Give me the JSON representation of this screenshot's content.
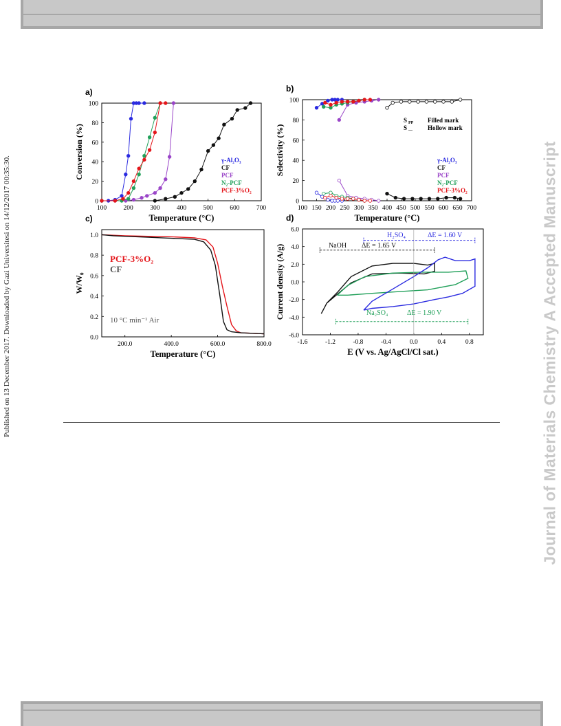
{
  "side_left": "Published on 13 December 2017. Downloaded by Gazi Universitesi on 14/12/2017 00:35:30.",
  "side_right": "Journal of Materials Chemistry A Accepted Manuscript",
  "colors": {
    "blue": "#2a2ae0",
    "black": "#111111",
    "purple": "#9a45c8",
    "green": "#21a05a",
    "red": "#e4161b",
    "gray": "#555555"
  },
  "chart_data": [
    {
      "panel": "a)",
      "type": "line",
      "xlabel": "Temperature (°C)",
      "ylabel": "Conversion (%)",
      "xlim": [
        100,
        700
      ],
      "ylim": [
        0,
        100
      ],
      "xticks": [
        100,
        200,
        300,
        400,
        500,
        600,
        700
      ],
      "yticks": [
        0,
        20,
        40,
        60,
        80,
        100
      ],
      "legend": [
        "γ-Al₂O₃",
        "CF",
        "PCF",
        "N₂-PCF",
        "PCF-3%O₂"
      ],
      "series": [
        {
          "name": "γ-Al₂O₃",
          "color": "blue",
          "x": [
            100,
            125,
            150,
            175,
            190,
            200,
            210,
            220,
            230,
            240,
            260
          ],
          "y": [
            0,
            0,
            1,
            5,
            27,
            46,
            84,
            100,
            100,
            100,
            100
          ]
        },
        {
          "name": "CF",
          "color": "black",
          "x": [
            300,
            340,
            375,
            400,
            425,
            450,
            475,
            500,
            520,
            540,
            560,
            590,
            610,
            640,
            660
          ],
          "y": [
            0,
            2,
            4,
            8,
            12,
            20,
            32,
            51,
            57,
            64,
            78,
            84,
            93,
            95,
            100
          ]
        },
        {
          "name": "PCF",
          "color": "purple",
          "x": [
            100,
            150,
            190,
            220,
            250,
            270,
            300,
            320,
            340,
            355,
            370
          ],
          "y": [
            0,
            0,
            0,
            1,
            3,
            5,
            8,
            13,
            22,
            45,
            100
          ]
        },
        {
          "name": "N₂-PCF",
          "color": "green",
          "x": [
            100,
            175,
            200,
            220,
            240,
            260,
            280,
            300,
            320
          ],
          "y": [
            0,
            0,
            2,
            13,
            27,
            46,
            65,
            85,
            100
          ]
        },
        {
          "name": "PCF-3%O₂",
          "color": "red",
          "x": [
            100,
            150,
            180,
            200,
            220,
            240,
            260,
            280,
            300,
            320,
            340
          ],
          "y": [
            0,
            0,
            2,
            8,
            20,
            33,
            42,
            52,
            70,
            100,
            100
          ]
        }
      ]
    },
    {
      "panel": "b)",
      "type": "line",
      "xlabel": "Temperature (°C)",
      "ylabel": "Selectivity (%)",
      "xlim": [
        100,
        700
      ],
      "ylim": [
        0,
        100
      ],
      "xticks": [
        100,
        150,
        200,
        250,
        300,
        350,
        400,
        450,
        500,
        550,
        600,
        650,
        700
      ],
      "yticks": [
        0,
        20,
        40,
        60,
        80,
        100
      ],
      "legend": [
        "γ-Al₂O₃",
        "CF",
        "PCF",
        "N₂-PCF",
        "PCF-3%O₂"
      ],
      "annotation": [
        "S",
        "PP",
        "Filled mark",
        "S",
        "—",
        "Hollow mark"
      ],
      "series": [
        {
          "name": "γ-Al₂O₃ S_PP",
          "color": "blue",
          "filled": true,
          "x": [
            150,
            170,
            190,
            205,
            215,
            225,
            240
          ],
          "y": [
            92,
            96,
            99,
            100,
            100,
            100,
            100
          ]
        },
        {
          "name": "γ-Al₂O₃ hollow",
          "color": "blue",
          "filled": false,
          "x": [
            150,
            170,
            190,
            205,
            215,
            225,
            240
          ],
          "y": [
            8,
            4,
            1,
            0,
            0,
            0,
            0
          ]
        },
        {
          "name": "CF S_PP",
          "color": "black",
          "filled": true,
          "x": [
            400,
            430,
            460,
            490,
            520,
            550,
            580,
            610,
            640,
            660
          ],
          "y": [
            7,
            3,
            2,
            2,
            2,
            2,
            2,
            3,
            3,
            2
          ]
        },
        {
          "name": "CF hollow",
          "color": "black",
          "filled": false,
          "x": [
            400,
            420,
            450,
            480,
            510,
            540,
            570,
            600,
            630,
            660
          ],
          "y": [
            92,
            97,
            98,
            98,
            98,
            98,
            98,
            98,
            98,
            100
          ]
        },
        {
          "name": "PCF S_PP",
          "color": "purple",
          "filled": true,
          "x": [
            230,
            260,
            290,
            320,
            345,
            370
          ],
          "y": [
            80,
            95,
            97,
            98,
            99,
            100
          ]
        },
        {
          "name": "PCF hollow",
          "color": "purple",
          "filled": false,
          "x": [
            230,
            260,
            290,
            320,
            345,
            370
          ],
          "y": [
            20,
            5,
            3,
            2,
            1,
            0
          ]
        },
        {
          "name": "N₂-PCF S_PP",
          "color": "green",
          "filled": true,
          "x": [
            175,
            200,
            220,
            240,
            260,
            280,
            300,
            320
          ],
          "y": [
            93,
            92,
            95,
            96,
            97,
            98,
            99,
            100
          ]
        },
        {
          "name": "N₂-PCF hollow",
          "color": "green",
          "filled": false,
          "x": [
            175,
            200,
            220,
            240,
            260,
            280,
            300,
            320
          ],
          "y": [
            7,
            8,
            5,
            4,
            3,
            2,
            1,
            0
          ]
        },
        {
          "name": "PCF-3%O₂ S_PP",
          "color": "red",
          "filled": true,
          "x": [
            180,
            200,
            220,
            240,
            260,
            280,
            300,
            320,
            340
          ],
          "y": [
            97,
            95,
            97,
            98,
            98,
            98,
            99,
            100,
            100
          ]
        },
        {
          "name": "PCF-3%O₂ hollow",
          "color": "red",
          "filled": false,
          "x": [
            180,
            200,
            220,
            240,
            260,
            280,
            300,
            320,
            340
          ],
          "y": [
            3,
            5,
            3,
            2,
            2,
            2,
            1,
            0,
            0
          ]
        }
      ]
    },
    {
      "panel": "c)",
      "type": "line",
      "xlabel": "Temperature (°C)",
      "ylabel": "W/W₀",
      "xlim": [
        100,
        800
      ],
      "ylim": [
        0.0,
        1.05
      ],
      "xticks": [
        200,
        400,
        600,
        800
      ],
      "yticks": [
        0.0,
        0.2,
        0.4,
        0.6,
        0.8,
        1.0
      ],
      "legend": [
        "PCF-3%O₂",
        "CF"
      ],
      "annotation": "10 °C min⁻¹ Air",
      "series": [
        {
          "name": "PCF-3%O₂",
          "color": "red",
          "x": [
            100,
            150,
            200,
            300,
            400,
            500,
            550,
            580,
            600,
            620,
            640,
            660,
            680,
            700,
            750,
            800
          ],
          "y": [
            1.0,
            0.995,
            0.99,
            0.985,
            0.98,
            0.97,
            0.95,
            0.88,
            0.72,
            0.5,
            0.3,
            0.12,
            0.06,
            0.04,
            0.035,
            0.03
          ]
        },
        {
          "name": "CF",
          "color": "black",
          "x": [
            100,
            150,
            200,
            300,
            400,
            500,
            540,
            570,
            590,
            610,
            625,
            640,
            660,
            700,
            750,
            800
          ],
          "y": [
            1.0,
            0.99,
            0.985,
            0.975,
            0.965,
            0.955,
            0.93,
            0.85,
            0.7,
            0.4,
            0.15,
            0.07,
            0.05,
            0.04,
            0.035,
            0.03
          ]
        }
      ]
    },
    {
      "panel": "d)",
      "type": "line",
      "xlabel": "E (V vs. Ag/AgCl/Cl sat.)",
      "ylabel": "Current density (A/g)",
      "xlim": [
        -1.6,
        1.0
      ],
      "ylim": [
        -6,
        6
      ],
      "xticks": [
        -1.6,
        -1.2,
        -0.8,
        -0.4,
        0.0,
        0.4,
        0.8
      ],
      "yticks": [
        -6,
        -4,
        -2,
        0,
        2,
        4,
        6
      ],
      "annotations": [
        {
          "text": "NaOH",
          "color": "black"
        },
        {
          "text": "ΔE = 1.65 V",
          "color": "black"
        },
        {
          "text": "H₂SO₄",
          "color": "blue"
        },
        {
          "text": "ΔE = 1.60 V",
          "color": "blue"
        },
        {
          "text": "Na₂SO₄",
          "color": "green"
        },
        {
          "text": "ΔE = 1.90 V",
          "color": "green"
        }
      ],
      "ranges": [
        {
          "color": "black",
          "xmin": -1.35,
          "xmax": 0.3,
          "y": 3.6
        },
        {
          "color": "blue",
          "xmin": -0.72,
          "xmax": 0.88,
          "y": 4.7
        },
        {
          "color": "green",
          "xmin": -1.12,
          "xmax": 0.78,
          "y": -4.5
        }
      ],
      "series": [
        {
          "name": "NaOH",
          "color": "black",
          "x": [
            -1.33,
            -1.25,
            -1.1,
            -0.9,
            -0.6,
            -0.3,
            0.0,
            0.2,
            0.3,
            0.3,
            0.15,
            -0.2,
            -0.6,
            -0.9,
            -1.1,
            -1.25,
            -1.33
          ],
          "y": [
            -3.6,
            -2.4,
            -1.2,
            0.6,
            1.8,
            2.1,
            2.1,
            1.9,
            2.1,
            1.2,
            0.9,
            1.0,
            0.9,
            -0.1,
            -1.4,
            -2.4,
            -3.6
          ]
        },
        {
          "name": "Na₂SO₄",
          "color": "green",
          "x": [
            -1.1,
            -0.95,
            -0.7,
            -0.3,
            0.1,
            0.5,
            0.75,
            0.78,
            0.6,
            0.2,
            -0.2,
            -0.6,
            -0.95,
            -1.1
          ],
          "y": [
            -1.5,
            -0.4,
            0.6,
            1.0,
            1.1,
            1.1,
            1.25,
            0.4,
            -0.3,
            -0.9,
            -1.1,
            -1.3,
            -1.5,
            -1.5
          ]
        },
        {
          "name": "H₂SO₄",
          "color": "blue",
          "x": [
            -0.72,
            -0.6,
            -0.3,
            0.0,
            0.2,
            0.35,
            0.45,
            0.6,
            0.8,
            0.88,
            0.88,
            0.7,
            0.5,
            0.3,
            0.0,
            -0.3,
            -0.6,
            -0.72
          ],
          "y": [
            -3.2,
            -2.2,
            -0.8,
            0.6,
            1.6,
            2.5,
            2.8,
            2.4,
            2.4,
            2.6,
            -0.5,
            -1.3,
            -1.7,
            -2.0,
            -2.5,
            -2.8,
            -3.0,
            -3.2
          ]
        }
      ]
    }
  ]
}
